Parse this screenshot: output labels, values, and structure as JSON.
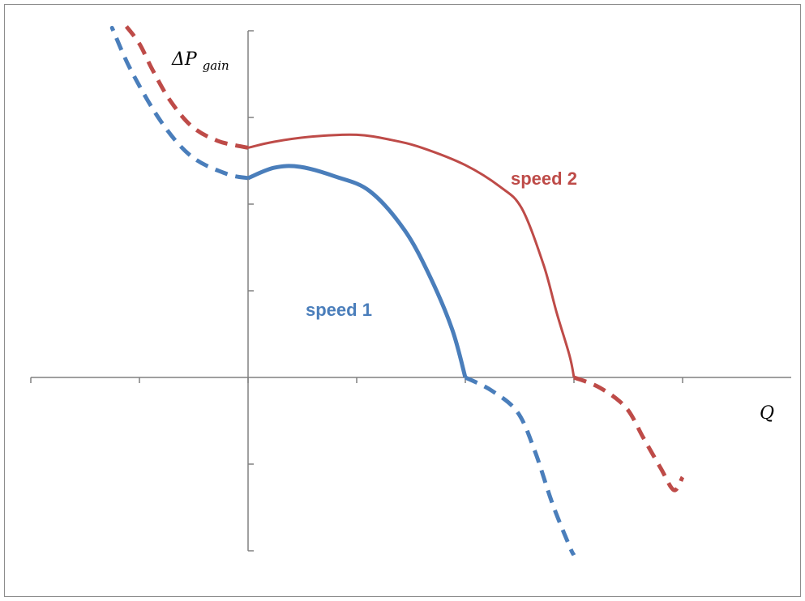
{
  "chart_data": {
    "type": "line",
    "xlabel": "Q",
    "ylabel_prefix": "ΔP",
    "ylabel_sub": "gain",
    "x_range": [
      -5,
      12.5
    ],
    "y_range": [
      -2,
      4
    ],
    "x_ticks": [
      -5,
      -2.5,
      0,
      2.5,
      5,
      7.5,
      10
    ],
    "y_ticks": [
      -2,
      -1,
      1,
      2,
      3,
      4
    ],
    "grid": false,
    "legend": "none",
    "series": [
      {
        "name": "speed 1",
        "color": "#4a7ebb",
        "solid": [
          [
            0,
            2.3
          ],
          [
            0.6,
            2.42
          ],
          [
            1.2,
            2.43
          ],
          [
            2.0,
            2.32
          ],
          [
            2.8,
            2.15
          ],
          [
            3.6,
            1.7
          ],
          [
            4.2,
            1.15
          ],
          [
            4.7,
            0.55
          ],
          [
            5.0,
            0.0
          ]
        ],
        "dashed_left": [
          [
            0,
            2.3
          ],
          [
            -0.5,
            2.35
          ],
          [
            -1.3,
            2.55
          ],
          [
            -2.0,
            2.95
          ],
          [
            -2.7,
            3.55
          ],
          [
            -3.1,
            4.0
          ],
          [
            -3.1,
            4.0
          ]
        ],
        "dashed_right": [
          [
            5.0,
            0.0
          ],
          [
            5.6,
            -0.15
          ],
          [
            6.2,
            -0.4
          ],
          [
            6.6,
            -0.85
          ],
          [
            7.0,
            -1.45
          ],
          [
            7.4,
            -1.95
          ],
          [
            7.5,
            -2.05
          ]
        ]
      },
      {
        "name": "speed 2",
        "color": "#be4b48",
        "solid": [
          [
            0,
            2.65
          ],
          [
            0.6,
            2.72
          ],
          [
            1.5,
            2.78
          ],
          [
            2.5,
            2.8
          ],
          [
            3.3,
            2.74
          ],
          [
            4.0,
            2.65
          ],
          [
            5.0,
            2.45
          ],
          [
            5.8,
            2.2
          ],
          [
            6.3,
            1.95
          ],
          [
            6.8,
            1.3
          ],
          [
            7.1,
            0.75
          ],
          [
            7.4,
            0.25
          ],
          [
            7.5,
            0.0
          ]
        ],
        "dashed_left": [
          [
            0,
            2.65
          ],
          [
            -0.7,
            2.73
          ],
          [
            -1.3,
            2.9
          ],
          [
            -1.8,
            3.2
          ],
          [
            -2.2,
            3.55
          ],
          [
            -2.5,
            3.85
          ],
          [
            -2.8,
            4.05
          ]
        ],
        "dashed_right": [
          [
            7.5,
            0.0
          ],
          [
            8.1,
            -0.12
          ],
          [
            8.7,
            -0.35
          ],
          [
            9.1,
            -0.7
          ],
          [
            9.5,
            -1.05
          ],
          [
            9.8,
            -1.3
          ],
          [
            10.0,
            -1.15
          ]
        ]
      }
    ]
  },
  "labels": {
    "speed1": "speed 1",
    "speed2": "speed 2",
    "q": "Q",
    "dp": "ΔP",
    "gain": "gain"
  }
}
